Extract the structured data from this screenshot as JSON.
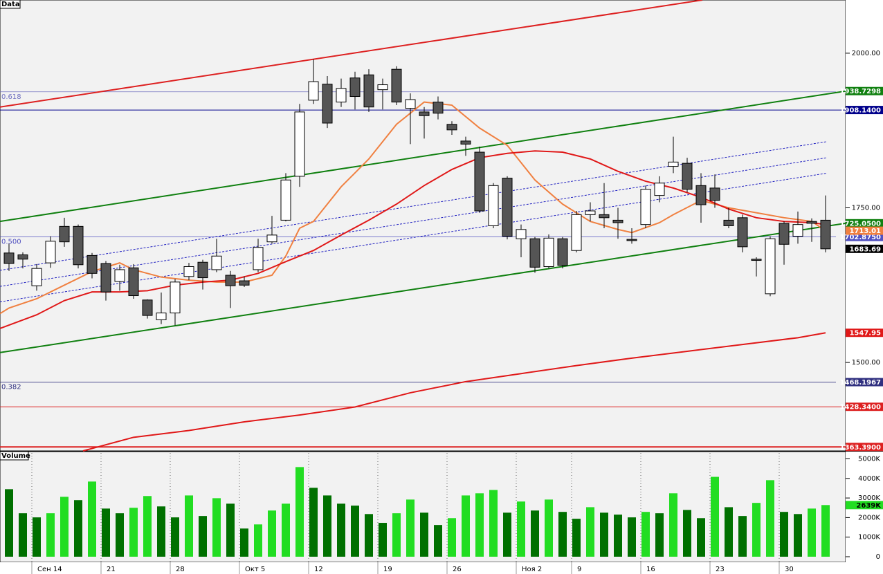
{
  "chart_data": [
    {
      "type": "candlestick",
      "title": "Data",
      "open": [
        1677,
        1674,
        1624,
        1661,
        1720,
        1720,
        1673,
        1660,
        1631,
        1653,
        1601,
        1569,
        1580,
        1639,
        1662,
        1650,
        1641,
        1632,
        1650,
        1695,
        1730,
        1801,
        1924,
        1950,
        1921,
        1960,
        1965,
        1941,
        1974,
        1911,
        1905,
        1921,
        1885,
        1858,
        1840,
        1721,
        1798,
        1700,
        1700,
        1655,
        1700,
        1681,
        1739,
        1739,
        1730,
        1699,
        1723,
        1770,
        1817,
        1822,
        1786,
        1782,
        1730,
        1734,
        1667,
        1611,
        1725,
        1704,
        1728,
        1730
      ],
      "high": [
        1692,
        1678,
        1659,
        1704,
        1734,
        1723,
        1677,
        1664,
        1658,
        1659,
        1602,
        1613,
        1635,
        1661,
        1666,
        1700,
        1648,
        1639,
        1700,
        1737,
        1806,
        1918,
        1990,
        1963,
        1959,
        1970,
        1974,
        1959,
        1979,
        1935,
        1913,
        1930,
        1890,
        1865,
        1849,
        1790,
        1801,
        1723,
        1703,
        1707,
        1703,
        1745,
        1759,
        1790,
        1750,
        1717,
        1786,
        1801,
        1865,
        1831,
        1806,
        1804,
        1750,
        1739,
        1670,
        1704,
        1728,
        1744,
        1733,
        1770
      ],
      "low": [
        1648,
        1652,
        1616,
        1653,
        1687,
        1652,
        1636,
        1600,
        1616,
        1603,
        1571,
        1562,
        1560,
        1633,
        1618,
        1646,
        1588,
        1622,
        1646,
        1692,
        1728,
        1784,
        1918,
        1879,
        1913,
        1909,
        1905,
        1909,
        1916,
        1853,
        1862,
        1893,
        1868,
        1834,
        1742,
        1717,
        1699,
        1670,
        1645,
        1652,
        1652,
        1678,
        1728,
        1717,
        1700,
        1692,
        1717,
        1759,
        1806,
        1775,
        1726,
        1750,
        1717,
        1678,
        1639,
        1607,
        1658,
        1692,
        1695,
        1678
      ],
      "close": [
        1660,
        1667,
        1652,
        1696,
        1695,
        1658,
        1644,
        1614,
        1650,
        1608,
        1576,
        1580,
        1630,
        1655,
        1637,
        1672,
        1624,
        1625,
        1686,
        1706,
        1795,
        1905,
        1954,
        1887,
        1943,
        1930,
        1913,
        1949,
        1921,
        1925,
        1899,
        1903,
        1876,
        1853,
        1745,
        1786,
        1704,
        1715,
        1654,
        1701,
        1657,
        1739,
        1745,
        1734,
        1726,
        1697,
        1780,
        1790,
        1824,
        1780,
        1755,
        1762,
        1721,
        1687,
        1665,
        1700,
        1691,
        1723,
        1725,
        1683.69
      ],
      "up_color": "#ffffff",
      "down_color": "#555555",
      "last_color": "#000000",
      "ylim": [
        1357,
        2086
      ],
      "yticks": [
        {
          "value": 2000,
          "label": "2000.00"
        },
        {
          "value": 1750,
          "label": "1750.00"
        },
        {
          "value": 1500,
          "label": "1500.00"
        }
      ],
      "overlays": [
        {
          "color": "#f08040",
          "x": [
            -0.65,
            0,
            2,
            4,
            6,
            8,
            9,
            11,
            13,
            15,
            17,
            19,
            20,
            21,
            22,
            24,
            26,
            28,
            30,
            32,
            34,
            36,
            38,
            40,
            42,
            44,
            45,
            47,
            48,
            50,
            52,
            54,
            56,
            58,
            59
          ],
          "values": [
            1579,
            1588,
            1603,
            1625,
            1647,
            1661,
            1650,
            1638,
            1633,
            1630,
            1630,
            1641,
            1672,
            1717,
            1728,
            1784,
            1829,
            1885,
            1921,
            1916,
            1879,
            1851,
            1795,
            1756,
            1728,
            1715,
            1710,
            1726,
            1739,
            1762,
            1750,
            1742,
            1734,
            1728,
            1713.01
          ]
        },
        {
          "color": "#e01818",
          "x": [
            -0.65,
            2,
            4,
            6,
            8,
            10,
            12,
            14,
            16,
            18,
            20,
            22,
            24,
            26,
            28,
            30,
            32,
            34,
            36,
            38,
            40,
            42,
            44,
            46,
            48,
            50,
            52,
            54,
            56,
            58,
            59
          ],
          "values": [
            1555,
            1577,
            1600,
            1614,
            1614,
            1616,
            1625,
            1630,
            1633,
            1644,
            1663,
            1681,
            1706,
            1730,
            1756,
            1786,
            1812,
            1831,
            1838,
            1842,
            1840,
            1829,
            1809,
            1793,
            1782,
            1767,
            1748,
            1734,
            1728,
            1726,
            1723
          ]
        },
        {
          "color": "#e01818",
          "x": [
            5.35,
            9,
            13,
            17,
            21,
            25,
            29,
            33,
            37,
            41,
            45,
            49,
            53,
            57,
            59
          ],
          "values": [
            1357,
            1379,
            1390,
            1404,
            1415,
            1428,
            1451,
            1469,
            1482,
            1495,
            1507,
            1518,
            1529,
            1540,
            1547.95
          ]
        }
      ],
      "trendlines": [
        {
          "color": "#dd2020",
          "x": [
            -0.65,
            50.1
          ],
          "values": [
            1913,
            2086
          ]
        },
        {
          "color": "#108010",
          "x": [
            -0.65,
            60.45
          ],
          "values": [
            1728,
            1938.7298
          ],
          "label": "1938.7298"
        },
        {
          "color": "#108010",
          "x": [
            -0.65,
            60.45
          ],
          "values": [
            1516,
            1725.05
          ],
          "label": "1725.0500"
        },
        {
          "color": "#2020c0",
          "dashed": true,
          "x": [
            -0.65,
            59.1
          ],
          "values": [
            1649,
            1857
          ]
        },
        {
          "color": "#2020c0",
          "dashed": true,
          "x": [
            -0.65,
            59.1
          ],
          "values": [
            1623,
            1831
          ]
        },
        {
          "color": "#2020c0",
          "dashed": true,
          "x": [
            -0.65,
            59.1
          ],
          "values": [
            1598,
            1806
          ]
        }
      ],
      "hlines": [
        {
          "color": "#00008b",
          "value": 1908.14,
          "label": "1908.1400"
        },
        {
          "color": "#dd2020",
          "value": 1428.34,
          "label": "1428.3400"
        },
        {
          "color": "#dd2020",
          "value": 1363.39,
          "label": "1363.3900"
        }
      ],
      "fib_levels": [
        {
          "ratio": "0.618",
          "value": 1937.55,
          "color": "#7070c0"
        },
        {
          "ratio": "0.500",
          "value": 1702.875,
          "color": "#5050c0",
          "label": "1702.8750"
        },
        {
          "ratio": "0.382",
          "value": 1468.1967,
          "color": "#303080",
          "label": "1468.1967"
        }
      ]
    },
    {
      "type": "bar",
      "title": "Volume",
      "categories": [
        null,
        null,
        "Сен 14",
        null,
        null,
        null,
        null,
        "21",
        null,
        null,
        null,
        null,
        "28",
        null,
        null,
        null,
        null,
        "Окт 5",
        null,
        null,
        null,
        null,
        "12",
        null,
        null,
        null,
        null,
        "19",
        null,
        null,
        null,
        null,
        "26",
        null,
        null,
        null,
        null,
        "Ноя 2",
        null,
        null,
        null,
        "9",
        null,
        null,
        null,
        null,
        "16",
        null,
        null,
        null,
        null,
        "23",
        null,
        null,
        null,
        null,
        "30",
        null,
        null,
        null
      ],
      "values": [
        3450,
        2220,
        2010,
        2220,
        3060,
        2890,
        3840,
        2460,
        2220,
        2500,
        3100,
        2570,
        2010,
        3130,
        2080,
        2990,
        2710,
        1440,
        1650,
        2360,
        2710,
        4580,
        3520,
        3130,
        2710,
        2610,
        2180,
        1730,
        2220,
        2920,
        2250,
        1620,
        1970,
        3130,
        3240,
        3410,
        2250,
        2820,
        2360,
        2920,
        2290,
        1940,
        2530,
        2250,
        2150,
        2010,
        2290,
        2220,
        3240,
        2390,
        1970,
        4080,
        2530,
        2080,
        2750,
        3910,
        2290,
        2180,
        2460,
        2639
      ],
      "value_labels": [
        null,
        null,
        null,
        null,
        null,
        null,
        null,
        null,
        null,
        null,
        null,
        null,
        null,
        null,
        null,
        null,
        null,
        null,
        null,
        null,
        null,
        null,
        null,
        null,
        null,
        null,
        null,
        null,
        null,
        null,
        null,
        null,
        null,
        null,
        null,
        null,
        null,
        null,
        null,
        null,
        null,
        null,
        null,
        null,
        null,
        null,
        null,
        null,
        null,
        null,
        null,
        null,
        null,
        null,
        null,
        null,
        null,
        null,
        null,
        "2639K"
      ],
      "colors": [
        "#007000",
        "#007000",
        "#007000",
        "#22dd22",
        "#22dd22",
        "#007000",
        "#22dd22",
        "#007000",
        "#007000",
        "#22dd22",
        "#22dd22",
        "#007000",
        "#007000",
        "#22dd22",
        "#007000",
        "#22dd22",
        "#007000",
        "#007000",
        "#22dd22",
        "#22dd22",
        "#22dd22",
        "#22dd22",
        "#007000",
        "#007000",
        "#007000",
        "#007000",
        "#007000",
        "#007000",
        "#22dd22",
        "#22dd22",
        "#007000",
        "#007000",
        "#22dd22",
        "#22dd22",
        "#22dd22",
        "#22dd22",
        "#007000",
        "#22dd22",
        "#007000",
        "#22dd22",
        "#007000",
        "#007000",
        "#22dd22",
        "#007000",
        "#007000",
        "#007000",
        "#22dd22",
        "#007000",
        "#22dd22",
        "#007000",
        "#007000",
        "#22dd22",
        "#007000",
        "#007000",
        "#22dd22",
        "#22dd22",
        "#007000",
        "#007000",
        "#22dd22",
        "#22dd22"
      ],
      "ylim": [
        0,
        5300
      ],
      "yticks": [
        0,
        {
          "value": 1000,
          "label": "1000K"
        },
        {
          "value": 2000,
          "label": "2000K"
        },
        {
          "value": 3000,
          "label": "3000K"
        },
        {
          "value": 4000,
          "label": "4000K"
        },
        {
          "value": 5000,
          "label": "5000K"
        }
      ]
    }
  ]
}
